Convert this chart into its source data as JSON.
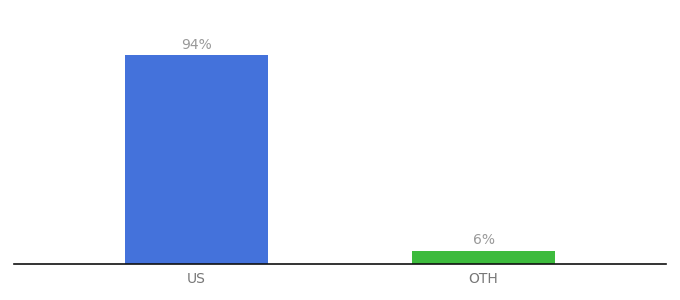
{
  "categories": [
    "US",
    "OTH"
  ],
  "values": [
    94,
    6
  ],
  "bar_colors": [
    "#4472db",
    "#3dbb3d"
  ],
  "label_texts": [
    "94%",
    "6%"
  ],
  "background_color": "#ffffff",
  "x_positions": [
    0.28,
    0.72
  ],
  "xlim": [
    0,
    1
  ],
  "ylim": [
    0,
    108
  ],
  "bar_width": 0.22,
  "label_fontsize": 10,
  "tick_fontsize": 10,
  "tick_color": "#777777",
  "label_color": "#999999"
}
